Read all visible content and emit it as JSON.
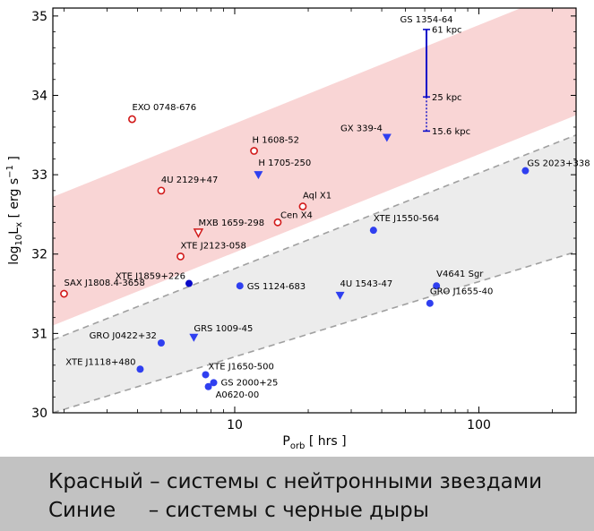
{
  "chart_data": {
    "type": "scatter",
    "xlabel": "P_orb [ hrs ]",
    "ylabel": "log10 Lx [ erg s^-1 ]",
    "x_scale": "log",
    "xlim": [
      1.8,
      250
    ],
    "ylim": [
      30,
      35.1
    ],
    "x_ticks": [
      10,
      100
    ],
    "y_ticks": [
      30,
      31,
      32,
      33,
      34,
      35
    ],
    "grid": false,
    "colors": {
      "neutron_star": "#d11a1a",
      "black_hole": "#2f3ff0",
      "black_hole_dark": "#0a0ac8",
      "band_ns": "#f9d5d5",
      "band_bh": "#ececec",
      "band_edge": "#a0a0a0"
    },
    "bands": [
      {
        "group": "neutron_star",
        "lower": [
          [
            1.8,
            31.1
          ],
          [
            250,
            33.75
          ]
        ],
        "upper": [
          [
            1.8,
            32.72
          ],
          [
            250,
            35.38
          ]
        ]
      },
      {
        "group": "black_hole",
        "lower": [
          [
            1.8,
            30.0
          ],
          [
            250,
            32.03
          ]
        ],
        "upper": [
          [
            1.8,
            30.92
          ],
          [
            250,
            33.5
          ]
        ]
      }
    ],
    "neutron_star_points": [
      {
        "name": "EXO 0748-676",
        "x": 3.8,
        "y": 33.7,
        "marker": "open-circle"
      },
      {
        "name": "H 1608-52",
        "x": 12.0,
        "y": 33.3,
        "marker": "open-circle"
      },
      {
        "name": "4U 2129+47",
        "x": 5.0,
        "y": 32.8,
        "marker": "open-circle"
      },
      {
        "name": "Aql X1",
        "x": 19.0,
        "y": 32.6,
        "marker": "open-circle"
      },
      {
        "name": "Cen X4",
        "x": 15.0,
        "y": 32.4,
        "marker": "open-circle"
      },
      {
        "name": "MXB 1659-298",
        "x": 7.1,
        "y": 32.27,
        "marker": "open-triangle-down"
      },
      {
        "name": "XTE J2123-058",
        "x": 6.0,
        "y": 31.97,
        "marker": "open-circle"
      },
      {
        "name": "SAX J1808.4-3658",
        "x": 2.0,
        "y": 31.5,
        "marker": "open-circle"
      }
    ],
    "black_hole_points": [
      {
        "name": "GX 339-4",
        "x": 42.0,
        "y": 33.47,
        "marker": "filled-triangle-down"
      },
      {
        "name": "H 1705-250",
        "x": 12.5,
        "y": 33.0,
        "marker": "filled-triangle-down"
      },
      {
        "name": "GS 2023+338",
        "x": 155.0,
        "y": 33.05,
        "marker": "filled-circle"
      },
      {
        "name": "XTE J1550-564",
        "x": 37.0,
        "y": 32.3,
        "marker": "filled-circle"
      },
      {
        "name": "XTE J1859+226",
        "x": 6.5,
        "y": 31.63,
        "marker": "filled-circle"
      },
      {
        "name": "GS 1124-683",
        "x": 10.5,
        "y": 31.6,
        "marker": "filled-circle"
      },
      {
        "name": "4U 1543-47",
        "x": 27.0,
        "y": 31.48,
        "marker": "filled-triangle-down"
      },
      {
        "name": "V4641 Sgr",
        "x": 67.0,
        "y": 31.6,
        "marker": "filled-circle"
      },
      {
        "name": "GRO J1655-40",
        "x": 63.0,
        "y": 31.38,
        "marker": "filled-circle"
      },
      {
        "name": "GRS 1009-45",
        "x": 6.8,
        "y": 30.95,
        "marker": "filled-triangle-down"
      },
      {
        "name": "GRO J0422+32",
        "x": 5.0,
        "y": 30.88,
        "marker": "filled-circle"
      },
      {
        "name": "XTE J1118+480",
        "x": 4.1,
        "y": 30.55,
        "marker": "filled-circle"
      },
      {
        "name": "XTE J1650-500",
        "x": 7.6,
        "y": 30.48,
        "marker": "filled-circle"
      },
      {
        "name": "GS 2000+25",
        "x": 8.2,
        "y": 30.38,
        "marker": "filled-circle"
      },
      {
        "name": "A0620-00",
        "x": 7.8,
        "y": 30.33,
        "marker": "filled-circle"
      }
    ],
    "distance_bar": {
      "name": "GS 1354-64",
      "x": 61.0,
      "levels": [
        {
          "label": "61 kpc",
          "y": 34.83
        },
        {
          "label": "25 kpc",
          "y": 33.98
        },
        {
          "label": "15.6 kpc",
          "y": 33.55
        }
      ]
    }
  },
  "caption": {
    "line1": "Красный – системы с нейтронными звездами",
    "line2": "Синие     – системы с черные дыры"
  }
}
